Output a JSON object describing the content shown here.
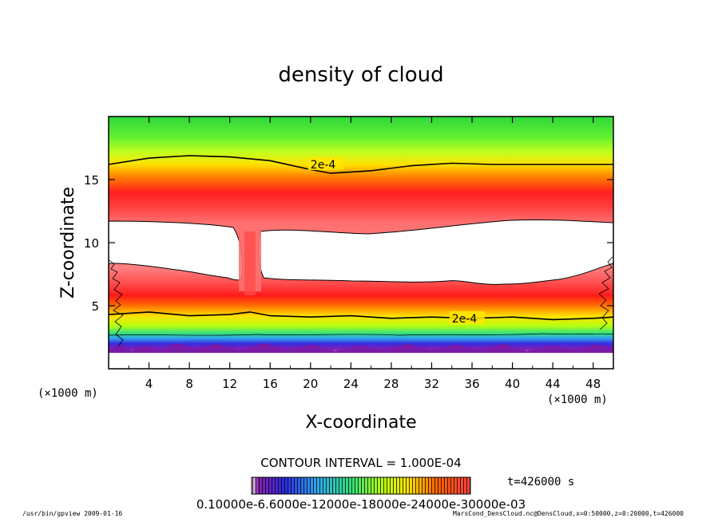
{
  "chart_data": {
    "type": "heatmap",
    "title": "density of cloud",
    "xlabel": "X-coordinate",
    "ylabel": "Z-coordinate",
    "x_unit": "(×1000 m)",
    "y_unit": "(×1000 m)",
    "xlim": [
      0,
      50
    ],
    "ylim": [
      0,
      20
    ],
    "x_ticks": [
      4,
      8,
      12,
      16,
      20,
      24,
      28,
      32,
      36,
      40,
      44,
      48
    ],
    "y_ticks": [
      5,
      10,
      15
    ],
    "contour_interval_label": "CONTOUR INTERVAL = 1.000E-04",
    "time_label": "t=426000 s",
    "colorbar_labels": "0.10000e-6.6000e-12000e-18000e-24000e-30000e-03",
    "contours": [
      {
        "label": "2e-4",
        "label_at": [
          20,
          16.2
        ],
        "points": [
          [
            0,
            16.2
          ],
          [
            4,
            16.7
          ],
          [
            8,
            16.9
          ],
          [
            12,
            16.8
          ],
          [
            16,
            16.5
          ],
          [
            20,
            15.8
          ],
          [
            22,
            15.5
          ],
          [
            26,
            15.7
          ],
          [
            30,
            16.1
          ],
          [
            34,
            16.3
          ],
          [
            38,
            16.2
          ],
          [
            42,
            16.2
          ],
          [
            46,
            16.2
          ],
          [
            50,
            16.2
          ]
        ]
      },
      {
        "label": "2e-4",
        "label_at": [
          34,
          4.0
        ],
        "points": [
          [
            0,
            4.3
          ],
          [
            4,
            4.5
          ],
          [
            8,
            4.2
          ],
          [
            12,
            4.3
          ],
          [
            14,
            4.5
          ],
          [
            16,
            4.2
          ],
          [
            20,
            4.1
          ],
          [
            24,
            4.2
          ],
          [
            28,
            4.0
          ],
          [
            32,
            4.1
          ],
          [
            36,
            4.0
          ],
          [
            40,
            4.1
          ],
          [
            44,
            3.9
          ],
          [
            48,
            4.0
          ],
          [
            50,
            4.1
          ]
        ]
      }
    ]
  },
  "footer": {
    "left": "/usr/bin/gpview  2009-01-16",
    "right": "MarsCond_DensCloud.nc@DensCloud,x=0:50000,z=0:20000,t=426000"
  }
}
